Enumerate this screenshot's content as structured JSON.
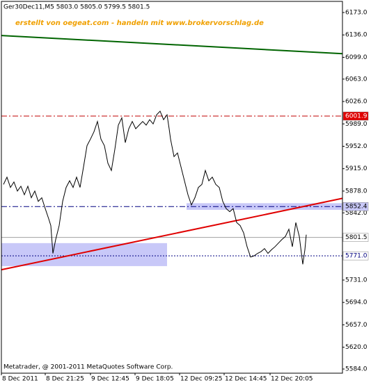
{
  "chart_data": {
    "type": "line",
    "title": "Ger30Dec11,M5  5803.0 5805.0 5799.5 5801.5",
    "annotation": "erstellt von oegeat.com - handeln mit www.brokervorschlag.de",
    "footer": "Metatrader, @ 2001-2011 MetaQuotes Software Corp.",
    "x": [
      3,
      8,
      13,
      18,
      23,
      28,
      33,
      38,
      43,
      48,
      53,
      58,
      63,
      68,
      71,
      74,
      78,
      83,
      88,
      93,
      98,
      103,
      108,
      113,
      118,
      123,
      128,
      133,
      138,
      143,
      148,
      153,
      158,
      163,
      168,
      173,
      178,
      183,
      188,
      193,
      198,
      203,
      208,
      213,
      218,
      223,
      228,
      233,
      238,
      241,
      243,
      248,
      253,
      258,
      263,
      268,
      273,
      278,
      283,
      288,
      293,
      298,
      303,
      308,
      313,
      318,
      323,
      328,
      333,
      338,
      343,
      348,
      353,
      358,
      363,
      368,
      373,
      378,
      383,
      388,
      393,
      398,
      403,
      408,
      413,
      418,
      423,
      428,
      433,
      436,
      438
    ],
    "series": [
      {
        "name": "Ger30Dec11",
        "color": "#000000",
        "values": [
          5889,
          5901,
          5884,
          5893,
          5878,
          5886,
          5872,
          5886,
          5867,
          5878,
          5861,
          5867,
          5849,
          5832,
          5821,
          5775,
          5798,
          5821,
          5861,
          5884,
          5895,
          5884,
          5901,
          5884,
          5918,
          5953,
          5964,
          5976,
          5993,
          5964,
          5953,
          5924,
          5912,
          5947,
          5987,
          5999,
          5958,
          5981,
          5993,
          5981,
          5987,
          5993,
          5987,
          5996,
          5989,
          6004,
          6010,
          5996,
          6004,
          5981,
          5964,
          5935,
          5941,
          5918,
          5895,
          5872,
          5855,
          5867,
          5884,
          5889,
          5912,
          5895,
          5901,
          5889,
          5884,
          5861,
          5849,
          5844,
          5849,
          5826,
          5821,
          5809,
          5786,
          5769,
          5771,
          5775,
          5778,
          5783,
          5775,
          5781,
          5786,
          5792,
          5798,
          5803,
          5815,
          5786,
          5826,
          5803,
          5757,
          5781,
          5806
        ]
      }
    ],
    "xlim": [
      0,
      490
    ],
    "ylim": [
      5577.1,
      6191.4
    ],
    "xticks": [
      {
        "value": 0,
        "label": "8 Dec 2011"
      },
      {
        "value": 63,
        "label": "8 Dec 21:25"
      },
      {
        "value": 128,
        "label": "9 Dec 12:45"
      },
      {
        "value": 192,
        "label": "9 Dec 18:05"
      },
      {
        "value": 256,
        "label": "12 Dec 09:25"
      },
      {
        "value": 320,
        "label": "12 Dec 14:45"
      },
      {
        "value": 386,
        "label": "12 Dec 20:05"
      }
    ],
    "yticks": [
      {
        "value": 6173,
        "label": "6173.0"
      },
      {
        "value": 6136,
        "label": "6136.0"
      },
      {
        "value": 6099,
        "label": "6099.0"
      },
      {
        "value": 6063,
        "label": "6063.0"
      },
      {
        "value": 6026,
        "label": "6026.0"
      },
      {
        "value": 5989,
        "label": "5989.0"
      },
      {
        "value": 5952,
        "label": "5952.0"
      },
      {
        "value": 5915,
        "label": "5915.0"
      },
      {
        "value": 5878,
        "label": "5878.0"
      },
      {
        "value": 5842,
        "label": "5842.0"
      },
      {
        "value": 5731,
        "label": "5731.0"
      },
      {
        "value": 5694,
        "label": "5694.0"
      },
      {
        "value": 5657,
        "label": "5657.0"
      },
      {
        "value": 5620,
        "label": "5620.0"
      },
      {
        "value": 5584,
        "label": "5584.0"
      }
    ],
    "zones": [
      {
        "x": [
          0,
          238
        ],
        "y": [
          5754,
          5792
        ],
        "color": "#c8c8f8"
      },
      {
        "x": [
          266,
          490
        ],
        "y": [
          5847,
          5858
        ],
        "color": "#c8c8f8"
      }
    ],
    "trendlines": [
      {
        "x": [
          0,
          490
        ],
        "y": [
          6135,
          6105
        ],
        "color": "#006400"
      },
      {
        "x": [
          0,
          490
        ],
        "y": [
          5748,
          5866
        ],
        "color": "#e00000"
      }
    ],
    "hlines": [
      {
        "value": 6001.9,
        "color": "#c00000",
        "dash": "8 3 2 3",
        "label_bg": "#e00000",
        "label_color": "#ffffff"
      },
      {
        "value": 5852.4,
        "color": "#000080",
        "dash": "8 3 2 3",
        "label_bg": "#c8c8f8",
        "label_color": "#000000"
      },
      {
        "value": 5801.5,
        "color": "#a0a0a0",
        "dash": "none",
        "label_bg": "#ffffff",
        "label_color": "#000000"
      },
      {
        "value": 5771,
        "label": "5771.0",
        "color": "#000080",
        "dash": "2 2",
        "label_bg": "#ffffff",
        "label_color": "#000080"
      }
    ]
  }
}
